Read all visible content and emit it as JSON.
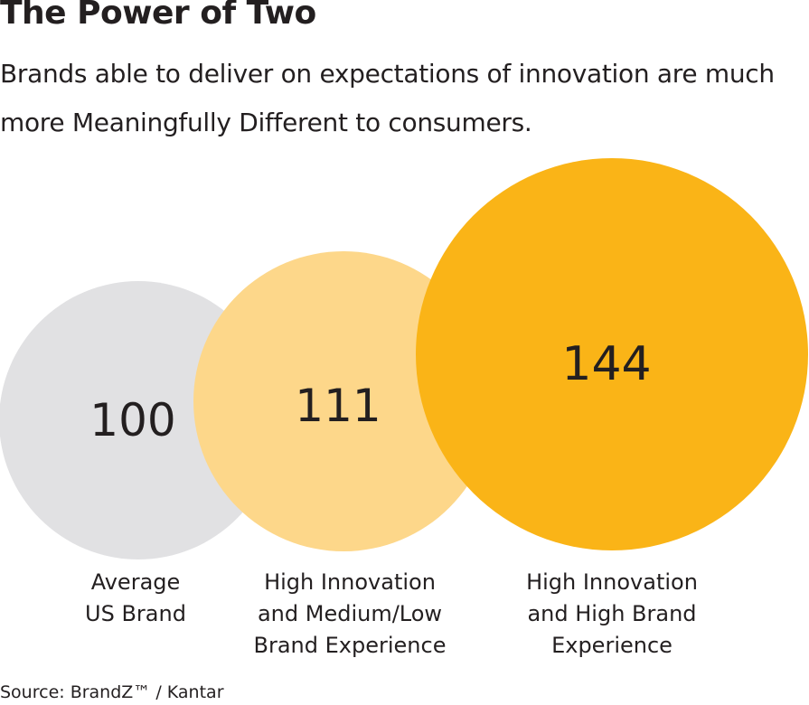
{
  "title": "The Power of Two",
  "subtitle": "Brands able to deliver on expectations of innovation are much more Meaningfully Different to consumers.",
  "source": "Source: BrandZ™ / Kantar",
  "chart_data": {
    "type": "bubble",
    "title": "The Power of Two",
    "categories": [
      "Average\nUS Brand",
      "High Innovation\nand Medium/Low\nBrand Experience",
      "High Innovation\nand High Brand\nExperience"
    ],
    "values": [
      100,
      111,
      144
    ],
    "colors": [
      "#e1e1e3",
      "#fdd78a",
      "#fab417"
    ]
  }
}
